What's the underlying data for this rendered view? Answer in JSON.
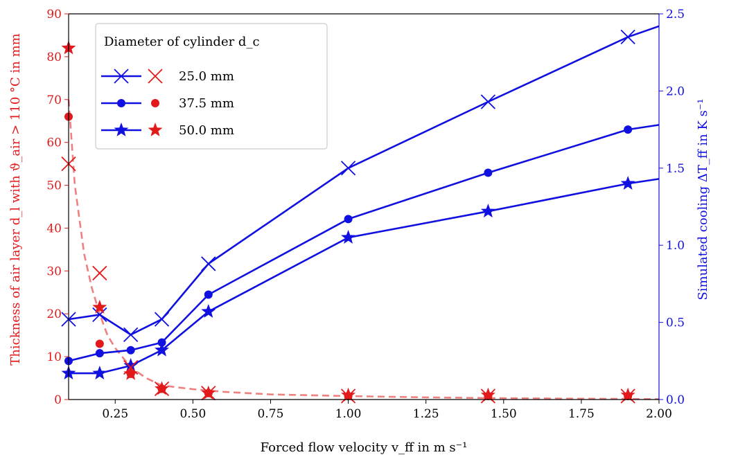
{
  "chart_data": {
    "type": "line",
    "xlabel": "Forced flow velocity v_ff in m s⁻¹",
    "ylabel_left": "Thickness of air layer d_l with ϑ_air > 110 °C in mm",
    "ylabel_right": "Simulated cooling ΔT_ff in K s⁻¹",
    "xlim": [
      0.1,
      2.0
    ],
    "ylim_left": [
      0,
      90
    ],
    "ylim_right": [
      0,
      2.5
    ],
    "x_ticks": [
      "0.25",
      "0.50",
      "0.75",
      "1.00",
      "1.25",
      "1.50",
      "1.75",
      "2.00"
    ],
    "y_left_ticks": [
      "0",
      "10",
      "20",
      "30",
      "40",
      "50",
      "60",
      "70",
      "80",
      "90"
    ],
    "y_right_ticks": [
      "0.0",
      "0.5",
      "1.0",
      "1.5",
      "2.0",
      "2.5"
    ],
    "legend": {
      "title": "Diameter of cylinder d_c",
      "placement": "top-left",
      "entries": [
        "25.0 mm",
        "37.5 mm",
        "50.0 mm"
      ]
    },
    "colors": {
      "left": "#e31a1c",
      "right": "#1010e0",
      "fit": "#f08080"
    },
    "left_series": [
      {
        "name": "25.0 mm",
        "marker": "x",
        "x": [
          0.1,
          0.2,
          0.3,
          0.4,
          0.55,
          1.0,
          1.45,
          1.9
        ],
        "y": [
          55,
          29.5,
          7.5,
          2.5,
          1.5,
          0.8,
          0.8,
          0.8
        ]
      },
      {
        "name": "37.5 mm",
        "marker": "circle",
        "x": [
          0.1,
          0.2,
          0.3,
          0.4,
          0.55,
          1.0,
          1.45,
          1.9
        ],
        "y": [
          66,
          13,
          6,
          2.5,
          1.5,
          0.8,
          0.8,
          0.8
        ]
      },
      {
        "name": "50.0 mm",
        "marker": "star",
        "x": [
          0.1,
          0.2,
          0.3,
          0.4,
          0.55,
          1.0,
          1.45,
          1.9
        ],
        "y": [
          82,
          21.5,
          6,
          2.5,
          1.5,
          1.0,
          1.0,
          1.0
        ]
      }
    ],
    "left_fit": {
      "style": "dashed",
      "x": [
        0.1,
        0.12,
        0.15,
        0.175,
        0.2,
        0.225,
        0.25,
        0.3,
        0.35,
        0.4,
        0.5,
        0.6,
        0.75,
        1.0,
        1.25,
        1.5,
        1.75,
        2.0
      ],
      "y": [
        70,
        50,
        34,
        26,
        20,
        15,
        12,
        7.5,
        5,
        3.3,
        2.4,
        1.8,
        1.2,
        0.8,
        0.5,
        0.3,
        0.2,
        0.1
      ]
    },
    "right_series": [
      {
        "name": "25.0 mm",
        "marker": "x",
        "x": [
          0.1,
          0.2,
          0.3,
          0.4,
          0.55,
          1.0,
          1.45,
          1.9,
          2.0
        ],
        "y": [
          0.52,
          0.55,
          0.42,
          0.52,
          0.88,
          1.5,
          1.93,
          2.35,
          2.42
        ]
      },
      {
        "name": "37.5 mm",
        "marker": "circle",
        "x": [
          0.1,
          0.2,
          0.3,
          0.4,
          0.55,
          1.0,
          1.45,
          1.9,
          2.0
        ],
        "y": [
          0.25,
          0.3,
          0.32,
          0.37,
          0.68,
          1.17,
          1.47,
          1.75,
          1.78
        ]
      },
      {
        "name": "50.0 mm",
        "marker": "star",
        "x": [
          0.1,
          0.2,
          0.3,
          0.4,
          0.55,
          1.0,
          1.45,
          1.9,
          2.0
        ],
        "y": [
          0.17,
          0.17,
          0.22,
          0.32,
          0.57,
          1.05,
          1.22,
          1.4,
          1.43
        ]
      }
    ]
  }
}
